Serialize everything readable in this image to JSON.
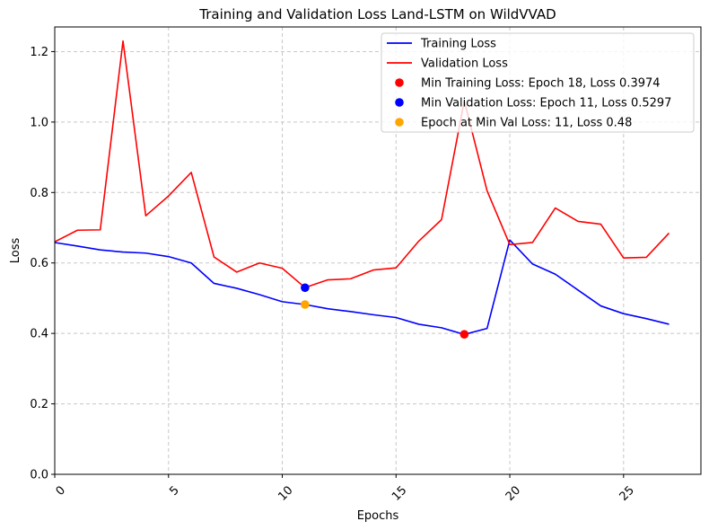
{
  "chart_data": {
    "type": "line",
    "title": "Training and Validation Loss Land-LSTM on WildVVAD",
    "xlabel": "Epochs",
    "ylabel": "Loss",
    "xlim": [
      0,
      28.4
    ],
    "ylim": [
      0,
      1.27
    ],
    "xticks": [
      0,
      5,
      10,
      15,
      20,
      25
    ],
    "yticks": [
      0.0,
      0.2,
      0.4,
      0.6,
      0.8,
      1.0,
      1.2
    ],
    "xtick_labels": [
      "0",
      "5",
      "10",
      "15",
      "20",
      "25"
    ],
    "ytick_labels": [
      "0.0",
      "0.2",
      "0.4",
      "0.6",
      "0.8",
      "1.0",
      "1.2"
    ],
    "xtick_rotation": 45,
    "grid": true,
    "legend_position": "top-right",
    "x": [
      0,
      1,
      2,
      3,
      4,
      5,
      6,
      7,
      8,
      9,
      10,
      11,
      12,
      13,
      14,
      15,
      16,
      17,
      18,
      19,
      20,
      21,
      22,
      23,
      24,
      25,
      26,
      27
    ],
    "series": [
      {
        "name": "Training Loss",
        "color": "#0000ff",
        "values": [
          0.658,
          0.648,
          0.637,
          0.631,
          0.628,
          0.618,
          0.6,
          0.542,
          0.528,
          0.51,
          0.49,
          0.482,
          0.47,
          0.462,
          0.453,
          0.445,
          0.426,
          0.416,
          0.397,
          0.414,
          0.665,
          0.597,
          0.568,
          0.523,
          0.478,
          0.456,
          0.442,
          0.426
        ]
      },
      {
        "name": "Validation Loss",
        "color": "#ff0000",
        "values": [
          0.66,
          0.693,
          0.694,
          1.23,
          0.734,
          0.79,
          0.857,
          0.617,
          0.574,
          0.6,
          0.585,
          0.53,
          0.552,
          0.555,
          0.58,
          0.586,
          0.662,
          0.723,
          1.06,
          0.805,
          0.652,
          0.658,
          0.756,
          0.718,
          0.71,
          0.614,
          0.616,
          0.685
        ]
      }
    ],
    "markers": [
      {
        "label": "Min Training Loss: Epoch 18, Loss 0.3974",
        "x": 18,
        "y": 0.3974,
        "color": "#ff0000"
      },
      {
        "label": "Min Validation Loss: Epoch 11, Loss 0.5297",
        "x": 11,
        "y": 0.5297,
        "color": "#0000ff"
      },
      {
        "label": "Epoch at Min Val Loss: 11, Loss 0.48",
        "x": 11,
        "y": 0.482,
        "color": "#ffa500"
      }
    ]
  }
}
